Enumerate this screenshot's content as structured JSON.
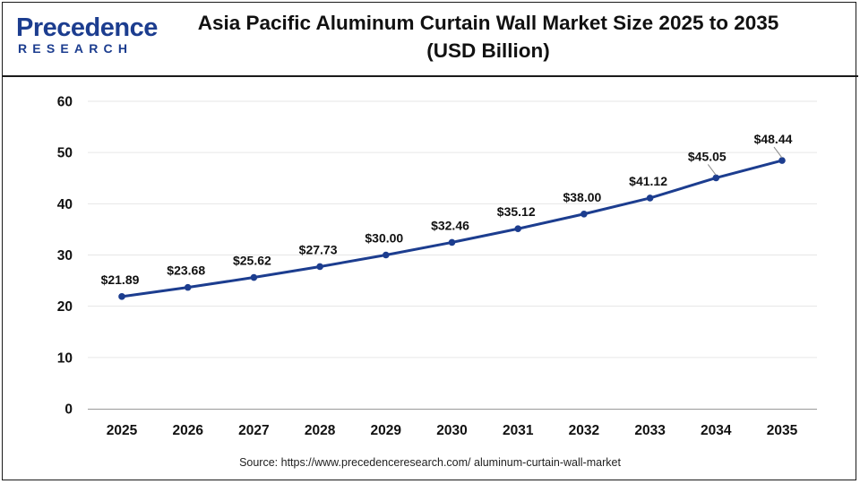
{
  "header": {
    "title_line1": "Asia Pacific Aluminum Curtain Wall Market Size 2025 to 2035",
    "title_line2": "(USD Billion)"
  },
  "logo": {
    "word": "Precedence",
    "sub": "RESEARCH"
  },
  "source": "Source: https://www.precedenceresearch.com/ aluminum-curtain-wall-market",
  "colors": {
    "line": "#1c3d8f",
    "brand": "#1c3d8f",
    "grid": "#e6e6e6"
  },
  "chart_data": {
    "type": "line",
    "title": "Asia Pacific Aluminum Curtain Wall Market Size 2025 to 2035 (USD Billion)",
    "xlabel": "",
    "ylabel": "",
    "x": [
      "2025",
      "2026",
      "2027",
      "2028",
      "2029",
      "2030",
      "2031",
      "2032",
      "2033",
      "2034",
      "2035"
    ],
    "values": [
      21.89,
      23.68,
      25.62,
      27.73,
      30.0,
      32.46,
      35.12,
      38.0,
      41.12,
      45.05,
      48.44
    ],
    "data_labels": [
      "$21.89",
      "$23.68",
      "$25.62",
      "$27.73",
      "$30.00",
      "$32.46",
      "$35.12",
      "$38.00",
      "$41.12",
      "$45.05",
      "$48.44"
    ],
    "y_ticks": [
      "0",
      "10",
      "20",
      "30",
      "40",
      "50",
      "60"
    ],
    "ylim": [
      0,
      60
    ],
    "grid": true,
    "legend": "none"
  }
}
